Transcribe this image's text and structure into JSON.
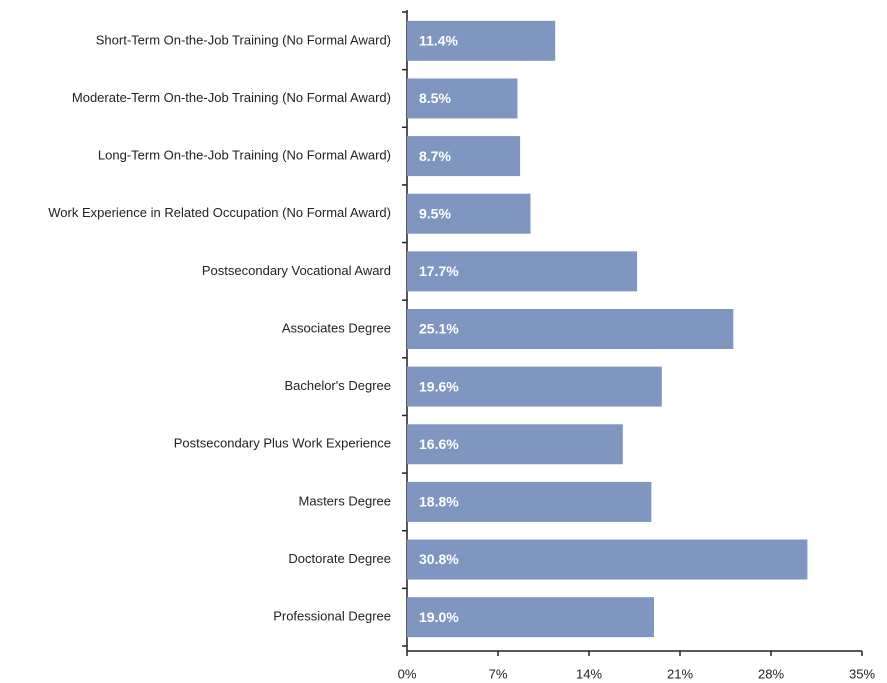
{
  "chart_data": {
    "type": "bar",
    "orientation": "horizontal",
    "categories": [
      "Short-Term On-the-Job Training (No Formal Award)",
      "Moderate-Term On-the-Job Training (No Formal Award)",
      "Long-Term On-the-Job Training (No Formal Award)",
      "Work Experience in Related Occupation (No Formal Award)",
      "Postsecondary Vocational Award",
      "Associates Degree",
      "Bachelor's Degree",
      "Postsecondary Plus Work Experience",
      "Masters Degree",
      "Doctorate Degree",
      "Professional Degree"
    ],
    "values": [
      11.4,
      8.5,
      8.7,
      9.5,
      17.7,
      25.1,
      19.6,
      16.6,
      18.8,
      30.8,
      19.0
    ],
    "value_labels": [
      "11.4%",
      "8.5%",
      "8.7%",
      "9.5%",
      "17.7%",
      "25.1%",
      "19.6%",
      "16.6%",
      "18.8%",
      "30.8%",
      "19.0%"
    ],
    "color": "#7f97c0",
    "xlim": [
      0,
      35
    ],
    "xticks": [
      {
        "value": 0,
        "label": "0%"
      },
      {
        "value": 7,
        "label": "7%"
      },
      {
        "value": 14,
        "label": "14%"
      },
      {
        "value": 21,
        "label": "21%"
      },
      {
        "value": 28,
        "label": "28%"
      },
      {
        "value": 35,
        "label": "35%"
      }
    ],
    "grid": false
  }
}
